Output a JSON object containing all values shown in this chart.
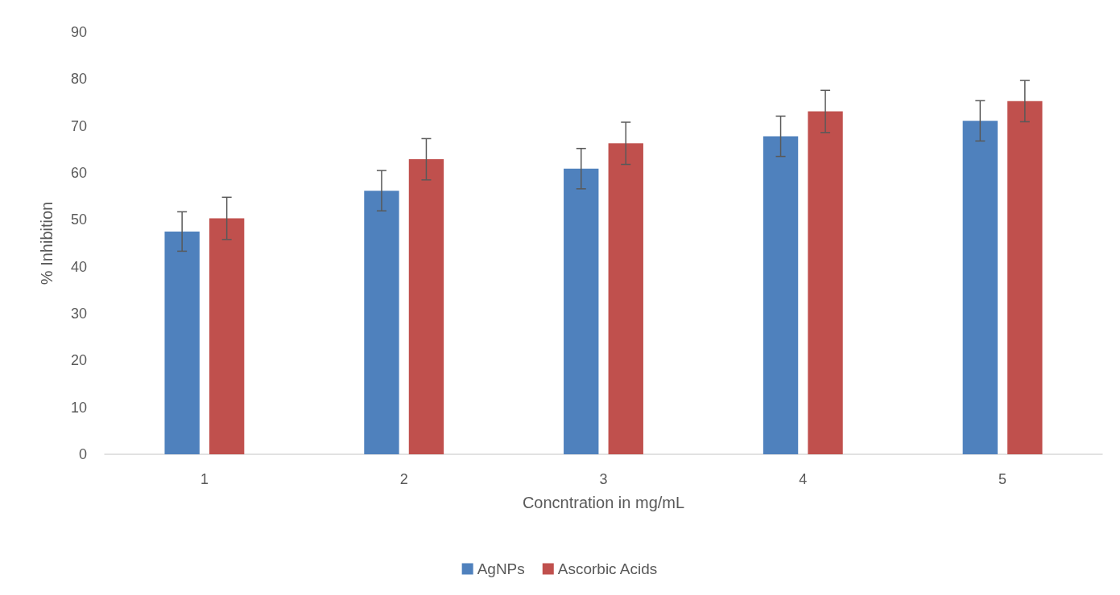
{
  "chart_data": {
    "type": "bar",
    "xlabel": "Concntration in mg/mL",
    "ylabel": "% Inhibition",
    "categories": [
      "1",
      "2",
      "3",
      "4",
      "5"
    ],
    "series": [
      {
        "name": "AgNPs",
        "color": "#4f81bd",
        "values": [
          47.5,
          56.2,
          60.9,
          67.8,
          71.1
        ],
        "errors": [
          4.2,
          4.3,
          4.3,
          4.3,
          4.3
        ]
      },
      {
        "name": "Ascorbic Acids",
        "color": "#c0504d",
        "values": [
          50.3,
          62.9,
          66.3,
          73.1,
          75.3
        ],
        "errors": [
          4.5,
          4.4,
          4.5,
          4.5,
          4.4
        ]
      }
    ],
    "ylim": [
      0,
      90
    ],
    "yticks": [
      0,
      10,
      20,
      30,
      40,
      50,
      60,
      70,
      80,
      90
    ],
    "grid": false,
    "legend": "bottom"
  }
}
